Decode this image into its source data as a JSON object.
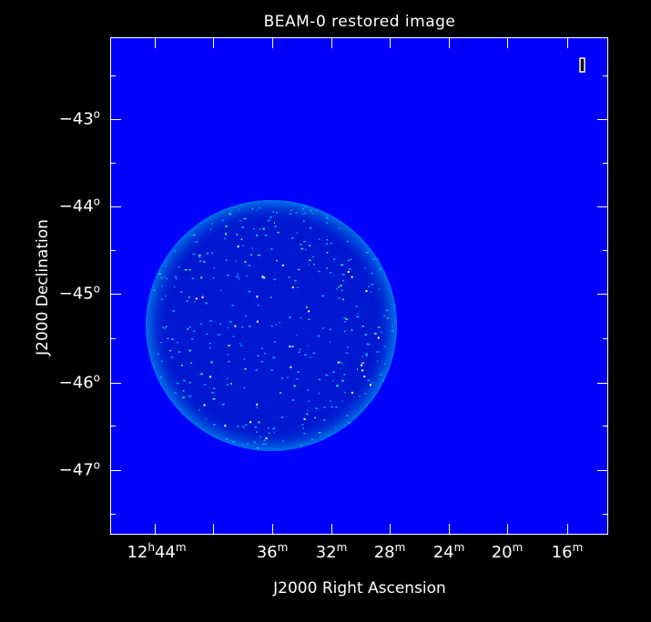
{
  "title": "BEAM-0 restored image",
  "x_axis": {
    "label": "J2000 Right Ascension",
    "ticks": [
      {
        "h": "12",
        "m": "44"
      },
      {
        "h": "",
        "m": "36"
      },
      {
        "h": "",
        "m": "32"
      },
      {
        "h": "",
        "m": "28"
      },
      {
        "h": "",
        "m": "24"
      },
      {
        "h": "",
        "m": "20"
      },
      {
        "h": "",
        "m": "16"
      }
    ],
    "hour_unit": "h",
    "minute_unit": "m"
  },
  "y_axis": {
    "label": "J2000 Declination",
    "ticks": [
      "−43",
      "−44",
      "−45",
      "−46",
      "−47"
    ],
    "degree_unit": "o"
  },
  "colors": {
    "background": "#000000",
    "image_background": "#0000ff",
    "noise_low": "#0010c8",
    "noise_mid": "#00b0ff",
    "noise_high": "#40ffb0",
    "source": "#ffffff"
  }
}
